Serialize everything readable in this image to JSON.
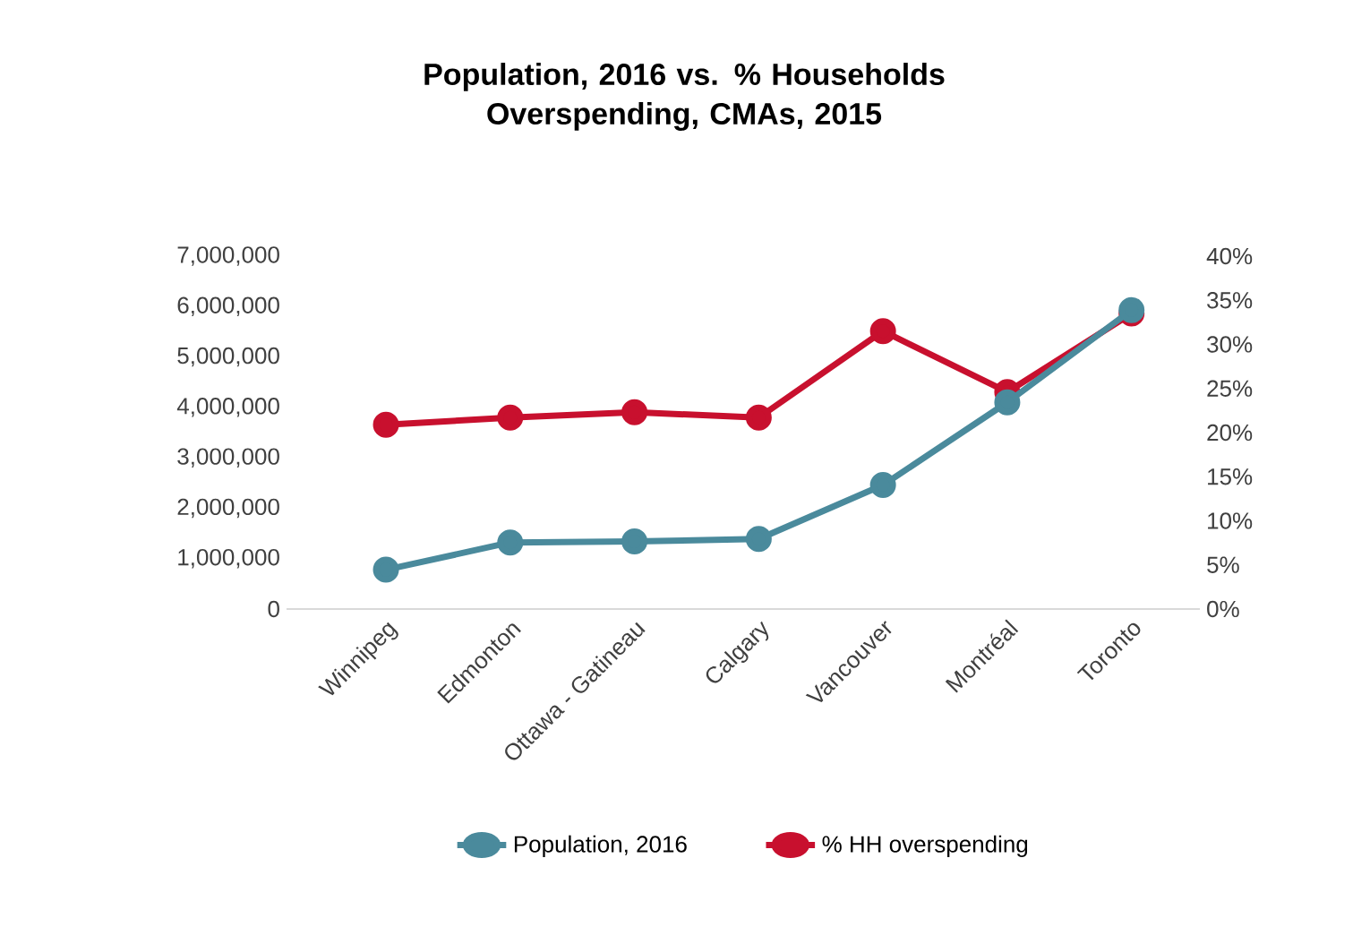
{
  "chart_data": {
    "type": "line",
    "title": "Population, 2016 vs. % Households Overspending, CMAs, 2015",
    "categories": [
      "Winnipeg",
      "Edmonton",
      "Ottawa - Gatineau",
      "Calgary",
      "Vancouver",
      "Montréal",
      "Toronto"
    ],
    "series": [
      {
        "name": "Population, 2016",
        "color": "#4a8a9c",
        "values": [
          780000,
          1320000,
          1340000,
          1390000,
          2460000,
          4100000,
          5930000
        ]
      },
      {
        "name": "% HH overspending",
        "color": "#c8102e",
        "axis": "y2",
        "values": [
          20.9,
          21.7,
          22.3,
          21.7,
          31.5,
          24.6,
          33.5
        ]
      }
    ],
    "ylim": [
      0,
      7000000
    ],
    "yticks": [
      {
        "value": 0,
        "label": "0"
      },
      {
        "value": 1000000,
        "label": "1,000,000"
      },
      {
        "value": 2000000,
        "label": "2,000,000"
      },
      {
        "value": 3000000,
        "label": "3,000,000"
      },
      {
        "value": 4000000,
        "label": "4,000,000"
      },
      {
        "value": 5000000,
        "label": "5,000,000"
      },
      {
        "value": 6000000,
        "label": "6,000,000"
      },
      {
        "value": 7000000,
        "label": "7,000,000"
      }
    ],
    "y2lim": [
      0,
      40
    ],
    "y2ticks": [
      {
        "value": 0,
        "label": "0%"
      },
      {
        "value": 5,
        "label": "5%"
      },
      {
        "value": 10,
        "label": "10%"
      },
      {
        "value": 15,
        "label": "15%"
      },
      {
        "value": 20,
        "label": "20%"
      },
      {
        "value": 25,
        "label": "25%"
      },
      {
        "value": 30,
        "label": "30%"
      },
      {
        "value": 35,
        "label": "35%"
      },
      {
        "value": 40,
        "label": "40%"
      }
    ],
    "grid": false,
    "legend": "bottom",
    "marker": "circle",
    "line_style": "solid"
  }
}
